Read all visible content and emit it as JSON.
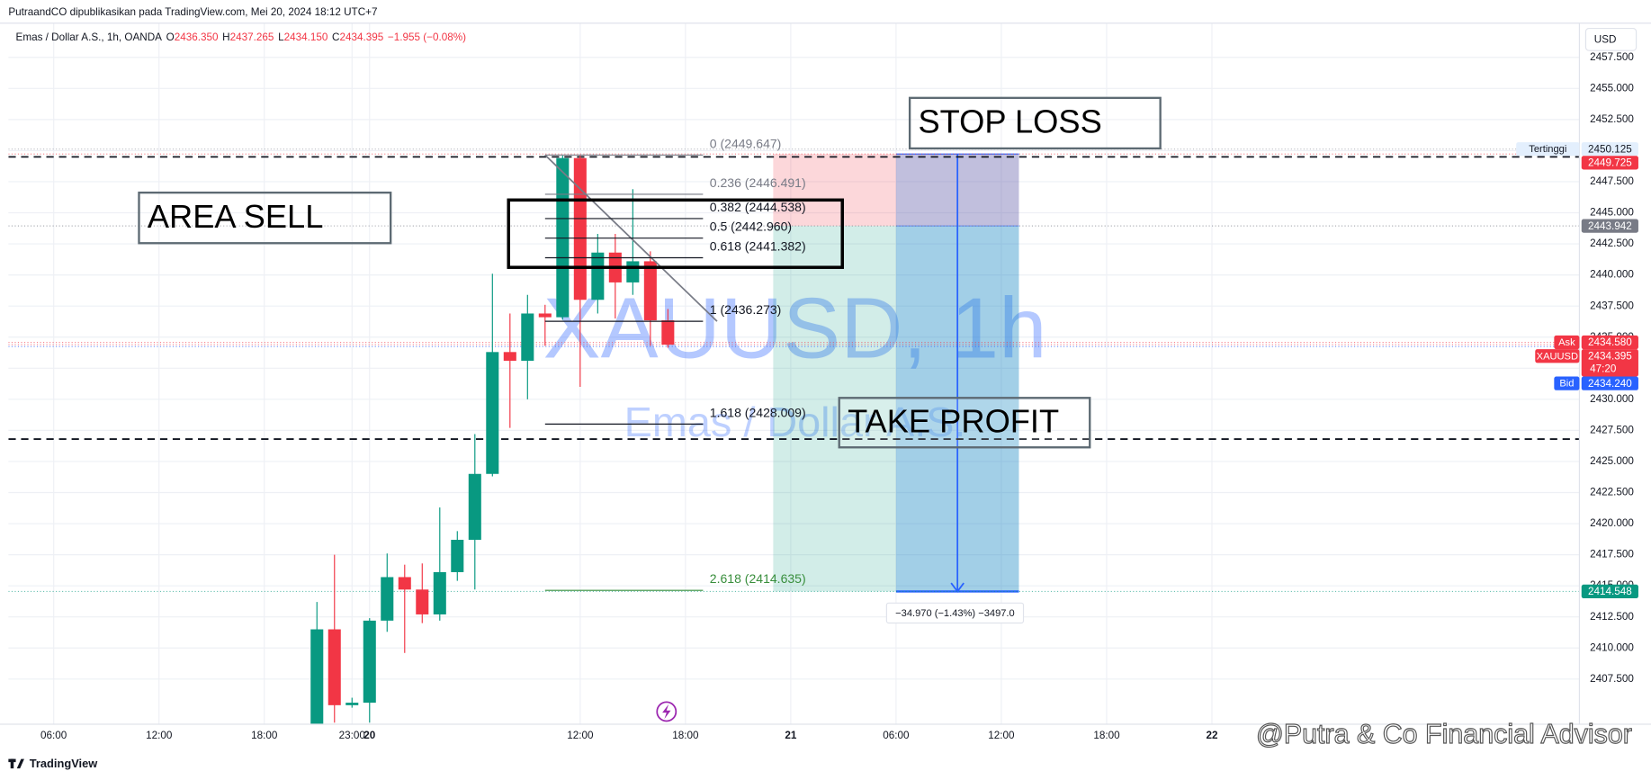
{
  "header": {
    "publisher": "PutraandCO dipublikasikan pada TradingView.com, Mei 20, 2024 18:12 UTC+7"
  },
  "chart_data": {
    "type": "candlestick",
    "symbol": "Emas / Dollar A.S., 1h, OANDA",
    "ohlc": [
      {
        "key": "O",
        "value": "2436.350"
      },
      {
        "key": "H",
        "value": "2437.265"
      },
      {
        "key": "L",
        "value": "2434.150"
      },
      {
        "key": "C",
        "value": "2434.395"
      }
    ],
    "change": "−1.955 (−0.08%)",
    "currency": "USD",
    "up_color": "#089981",
    "down_color": "#f23645",
    "xlim": [
      -2.58,
      86.94
    ],
    "xticks": [
      {
        "value": 0,
        "label": "06:00"
      },
      {
        "value": 6,
        "label": "12:00"
      },
      {
        "value": 12,
        "label": "18:00"
      },
      {
        "value": 17,
        "label": "23:00"
      },
      {
        "value": 18,
        "label": "20"
      },
      {
        "value": 30,
        "label": "12:00"
      },
      {
        "value": 36,
        "label": "18:00"
      },
      {
        "value": 42,
        "label": "21"
      },
      {
        "value": 48,
        "label": "06:00"
      },
      {
        "value": 54,
        "label": "12:00"
      },
      {
        "value": 60,
        "label": "18:00"
      },
      {
        "value": 66,
        "label": "22"
      }
    ],
    "ylim": [
      2403.87,
      2460.25
    ],
    "yticks": [
      {
        "value": 2407.5,
        "label": "2407.500"
      },
      {
        "value": 2410,
        "label": "2410.000"
      },
      {
        "value": 2412.5,
        "label": "2412.500"
      },
      {
        "value": 2415,
        "label": "2415.000"
      },
      {
        "value": 2417.5,
        "label": "2417.500"
      },
      {
        "value": 2420,
        "label": "2420.000"
      },
      {
        "value": 2422.5,
        "label": "2422.500"
      },
      {
        "value": 2425,
        "label": "2425.000"
      },
      {
        "value": 2427.5,
        "label": "2427.500"
      },
      {
        "value": 2430,
        "label": "2430.000"
      },
      {
        "value": 2432.5,
        "label": "2432.500"
      },
      {
        "value": 2435,
        "label": "2435.000"
      },
      {
        "value": 2437.5,
        "label": "2437.500"
      },
      {
        "value": 2440,
        "label": "2440.000"
      },
      {
        "value": 2442.5,
        "label": "2442.500"
      },
      {
        "value": 2445,
        "label": "2445.000"
      },
      {
        "value": 2447.5,
        "label": "2447.500"
      },
      {
        "value": 2450,
        "label": "2450.000"
      },
      {
        "value": 2452.5,
        "label": "2452.500"
      },
      {
        "value": 2455,
        "label": "2455.000"
      },
      {
        "value": 2457.5,
        "label": "2457.500"
      }
    ],
    "grid": true,
    "candles": [
      {
        "x": 15,
        "open": 2403.9,
        "high": 2413.7,
        "low": 2403.0,
        "close": 2411.5
      },
      {
        "x": 16,
        "open": 2411.5,
        "high": 2417.5,
        "low": 2404.0,
        "close": 2405.4
      },
      {
        "x": 17,
        "open": 2405.4,
        "high": 2406.0,
        "low": 2405.2,
        "close": 2405.6
      },
      {
        "x": 18,
        "open": 2405.6,
        "high": 2412.4,
        "low": 2404.0,
        "close": 2412.2
      },
      {
        "x": 19,
        "open": 2412.2,
        "high": 2417.6,
        "low": 2411.3,
        "close": 2415.7
      },
      {
        "x": 20,
        "open": 2415.7,
        "high": 2416.7,
        "low": 2409.6,
        "close": 2414.7
      },
      {
        "x": 21,
        "open": 2414.7,
        "high": 2416.8,
        "low": 2412.0,
        "close": 2412.7
      },
      {
        "x": 22,
        "open": 2412.7,
        "high": 2421.3,
        "low": 2412.2,
        "close": 2416.1
      },
      {
        "x": 23,
        "open": 2416.1,
        "high": 2419.4,
        "low": 2415.4,
        "close": 2418.7
      },
      {
        "x": 24,
        "open": 2418.7,
        "high": 2427.2,
        "low": 2414.7,
        "close": 2424.0
      },
      {
        "x": 25,
        "open": 2424.0,
        "high": 2440.1,
        "low": 2423.8,
        "close": 2433.8
      },
      {
        "x": 26,
        "open": 2433.8,
        "high": 2436.9,
        "low": 2427.7,
        "close": 2433.1
      },
      {
        "x": 27,
        "open": 2433.1,
        "high": 2438.4,
        "low": 2430.0,
        "close": 2436.9
      },
      {
        "x": 28,
        "open": 2436.9,
        "high": 2437.6,
        "low": 2434.3,
        "close": 2436.6
      },
      {
        "x": 29,
        "open": 2436.6,
        "high": 2449.6,
        "low": 2436.4,
        "close": 2449.4
      },
      {
        "x": 30,
        "open": 2449.4,
        "high": 2449.6,
        "low": 2431.0,
        "close": 2438.0
      },
      {
        "x": 31,
        "open": 2438.0,
        "high": 2443.3,
        "low": 2436.9,
        "close": 2441.8
      },
      {
        "x": 32,
        "open": 2441.8,
        "high": 2443.3,
        "low": 2436.5,
        "close": 2439.4
      },
      {
        "x": 33,
        "open": 2439.4,
        "high": 2446.9,
        "low": 2438.4,
        "close": 2441.1
      },
      {
        "x": 34,
        "open": 2441.1,
        "high": 2441.9,
        "low": 2434.3,
        "close": 2436.35
      },
      {
        "x": 35,
        "open": 2436.35,
        "high": 2437.265,
        "low": 2434.15,
        "close": 2434.395
      }
    ],
    "fib": [
      {
        "value": 2449.647,
        "label": "0 (2449.647)",
        "color": "#787b86"
      },
      {
        "value": 2446.491,
        "label": "0.236 (2446.491)",
        "color": "#787b86"
      },
      {
        "value": 2444.538,
        "label": "0.382 (2444.538)",
        "color": "#131722"
      },
      {
        "value": 2442.96,
        "label": "0.5 (2442.960)",
        "color": "#131722"
      },
      {
        "value": 2441.382,
        "label": "0.618 (2441.382)",
        "color": "#131722"
      },
      {
        "value": 2436.273,
        "label": "1 (2436.273)",
        "color": "#131722"
      },
      {
        "value": 2428.009,
        "label": "1.618 (2428.009)",
        "color": "#131722"
      },
      {
        "value": 2414.635,
        "label": "2.618 (2414.635)",
        "color": "#388e3c"
      }
    ],
    "hlines": [
      2449.5,
      2426.8
    ],
    "position": {
      "stop": 2449.725,
      "entry": 2443.942,
      "target": 2414.548,
      "label": "−34.970 (−1.43%) −3497.0"
    },
    "price_markers": [
      {
        "tag": "Tertinggi",
        "value": 2450.125,
        "label": "2450.125",
        "color": "#e3effd",
        "text_color": "#131722"
      },
      {
        "value": 2449.725,
        "label": "2449.725",
        "color": "#f23645",
        "text_color": "#ffffff"
      },
      {
        "value": 2443.942,
        "label": "2443.942",
        "color": "#787b86",
        "text_color": "#ffffff"
      },
      {
        "tag": "Ask",
        "value": 2434.58,
        "label": "2434.580",
        "color": "#f23645",
        "text_color": "#ffffff"
      },
      {
        "tag": "XAUUSD",
        "value": 2434.395,
        "label": "2434.395",
        "countdown": "47:20",
        "color": "#f23645",
        "text_color": "#ffffff"
      },
      {
        "tag": "Bid",
        "value": 2434.24,
        "label": "2434.240",
        "color": "#2962ff",
        "text_color": "#ffffff"
      },
      {
        "value": 2414.548,
        "label": "2414.548",
        "color": "#089981",
        "text_color": "#ffffff"
      }
    ],
    "annotations": [
      {
        "text": "AREA SELL"
      },
      {
        "text": "STOP LOSS"
      },
      {
        "text": "TAKE PROFIT"
      }
    ],
    "watermark": {
      "symbol": "XAUUSD, 1h",
      "description": "Emas / Dollar A.S."
    },
    "credit": "@Putra & Co Financial Advisor"
  },
  "footer": {
    "brand": "TradingView"
  }
}
